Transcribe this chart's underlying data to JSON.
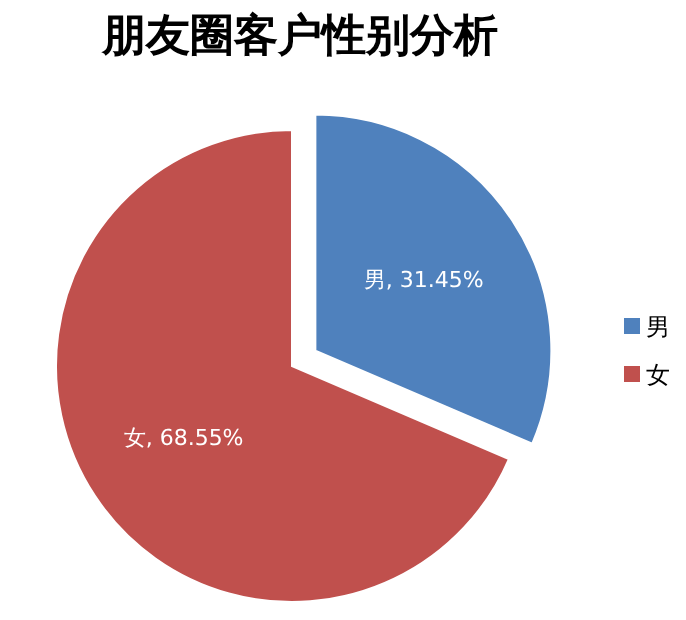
{
  "chart_data": {
    "type": "pie",
    "title": "朋友圈客户性别分析",
    "categories": [
      "男",
      "女"
    ],
    "values": [
      31.45,
      68.55
    ],
    "colors": [
      "#4f81bd",
      "#c0504d"
    ],
    "value_labels": [
      "男, 31.45%",
      "女, 68.55%"
    ],
    "legend": "right"
  }
}
